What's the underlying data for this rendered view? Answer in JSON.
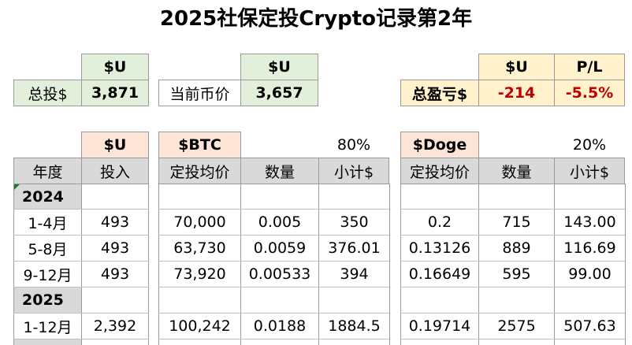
{
  "title": "2025社保定投Crypto记录第2年",
  "summary": {
    "total_label": "总投$",
    "total_unit": "$U",
    "total_value": "3,871",
    "price_label": "当前币价",
    "price_unit": "$U",
    "price_value": "3,657",
    "pl_label": "总盈亏$",
    "pl_unit": "$U",
    "pl_pct_header": "P/L",
    "pl_value": "-214",
    "pl_pct": "-5.5%"
  },
  "sections": {
    "invest_unit": "$U",
    "btc_label": "$BTC",
    "btc_pct": "80%",
    "doge_label": "$Doge",
    "doge_pct": "20%"
  },
  "headers": [
    "年度",
    "投入",
    "定投均价",
    "数量",
    "小计$",
    "定投均价",
    "数量",
    "小计$"
  ],
  "years": {
    "y2024": "2024",
    "y2025": "2025"
  },
  "rows": [
    {
      "period": "1-4月",
      "invest": "493",
      "btc_avg": "70,000",
      "btc_qty": "0.005",
      "btc_sub": "350",
      "doge_avg": "0.2",
      "doge_qty": "715",
      "doge_sub": "143.00"
    },
    {
      "period": "5-8月",
      "invest": "493",
      "btc_avg": "63,730",
      "btc_qty": "0.0059",
      "btc_sub": "376.01",
      "doge_avg": "0.13126",
      "doge_qty": "889",
      "doge_sub": "116.69"
    },
    {
      "period": "9-12月",
      "invest": "493",
      "btc_avg": "73,920",
      "btc_qty": "0.00533",
      "btc_sub": "394",
      "doge_avg": "0.16649",
      "doge_qty": "595",
      "doge_sub": "99.00"
    },
    {
      "period": "1-12月",
      "invest": "2,392",
      "btc_avg": "100,242",
      "btc_qty": "0.0188",
      "btc_sub": "1884.5",
      "doge_avg": "0.19714",
      "doge_qty": "2575",
      "doge_sub": "507.63"
    }
  ]
}
